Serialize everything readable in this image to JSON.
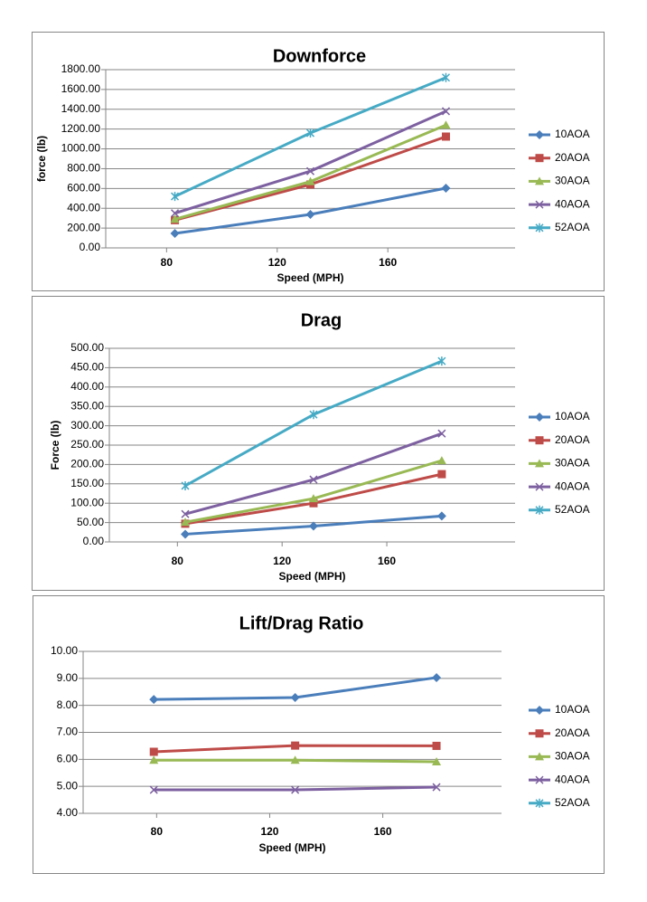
{
  "chart_data": [
    {
      "type": "line",
      "title": "Downforce",
      "x_label": "Speed (MPH)",
      "y_label": "force (lb)",
      "x": [
        83,
        132,
        181
      ],
      "xlim": [
        58,
        206
      ],
      "xticks": [
        80,
        120,
        160
      ],
      "ylim": [
        0,
        1800
      ],
      "yticks": [
        {
          "value": 0,
          "label": "0.00"
        },
        {
          "value": 200,
          "label": "200.00"
        },
        {
          "value": 400,
          "label": "400.00"
        },
        {
          "value": 600,
          "label": "600.00"
        },
        {
          "value": 800,
          "label": "800.00"
        },
        {
          "value": 1000,
          "label": "1000.00"
        },
        {
          "value": 1200,
          "label": "1200.00"
        },
        {
          "value": 1400,
          "label": "1400.00"
        },
        {
          "value": 1600,
          "label": "1600.00"
        },
        {
          "value": 1800,
          "label": "1800.00"
        }
      ],
      "grid": true,
      "legend": "right",
      "series": [
        {
          "name": "10AOA",
          "color": "#4a7ebb",
          "marker": "diamond",
          "values": [
            146,
            338,
            603
          ]
        },
        {
          "name": "20AOA",
          "color": "#be4b48",
          "marker": "square",
          "values": [
            280,
            640,
            1124
          ]
        },
        {
          "name": "30AOA",
          "color": "#98b954",
          "marker": "triangle",
          "values": [
            290,
            670,
            1240
          ]
        },
        {
          "name": "40AOA",
          "color": "#7d60a0",
          "marker": "x",
          "values": [
            350,
            775,
            1380
          ]
        },
        {
          "name": "52AOA",
          "color": "#46aac5",
          "marker": "star",
          "values": [
            520,
            1160,
            1720
          ]
        }
      ]
    },
    {
      "type": "line",
      "title": "Drag",
      "x_label": "Speed (MPH)",
      "y_label": "Force (lb)",
      "x": [
        83,
        132,
        181
      ],
      "xlim": [
        54,
        209
      ],
      "xticks": [
        80,
        120,
        160
      ],
      "ylim": [
        0,
        500
      ],
      "yticks": [
        {
          "value": 0,
          "label": "0.00"
        },
        {
          "value": 50,
          "label": "50.00"
        },
        {
          "value": 100,
          "label": "100.00"
        },
        {
          "value": 150,
          "label": "150.00"
        },
        {
          "value": 200,
          "label": "200.00"
        },
        {
          "value": 250,
          "label": "250.00"
        },
        {
          "value": 300,
          "label": "300.00"
        },
        {
          "value": 350,
          "label": "350.00"
        },
        {
          "value": 400,
          "label": "400.00"
        },
        {
          "value": 450,
          "label": "450.00"
        },
        {
          "value": 500,
          "label": "500.00"
        }
      ],
      "grid": true,
      "legend": "right",
      "series": [
        {
          "name": "10AOA",
          "color": "#4a7ebb",
          "marker": "diamond",
          "values": [
            20,
            41,
            67
          ]
        },
        {
          "name": "20AOA",
          "color": "#be4b48",
          "marker": "square",
          "values": [
            47,
            100,
            175
          ]
        },
        {
          "name": "30AOA",
          "color": "#98b954",
          "marker": "triangle",
          "values": [
            51,
            112,
            210
          ]
        },
        {
          "name": "40AOA",
          "color": "#7d60a0",
          "marker": "x",
          "values": [
            72,
            161,
            280
          ]
        },
        {
          "name": "52AOA",
          "color": "#46aac5",
          "marker": "star",
          "values": [
            145,
            329,
            467
          ]
        }
      ]
    },
    {
      "type": "line",
      "title": "Lift/Drag Ratio",
      "x_label": "Speed (MPH)",
      "x": [
        79,
        129,
        179
      ],
      "xlim": [
        54,
        202
      ],
      "xticks": [
        80,
        120,
        160
      ],
      "ylim": [
        4,
        10
      ],
      "yticks": [
        {
          "value": 4,
          "label": "4.00"
        },
        {
          "value": 5,
          "label": "5.00"
        },
        {
          "value": 6,
          "label": "6.00"
        },
        {
          "value": 7,
          "label": "7.00"
        },
        {
          "value": 8,
          "label": "8.00"
        },
        {
          "value": 9,
          "label": "9.00"
        },
        {
          "value": 10,
          "label": "10.00"
        }
      ],
      "grid": true,
      "legend": "right",
      "series": [
        {
          "name": "10AOA",
          "color": "#4a7ebb",
          "marker": "diamond",
          "values": [
            8.22,
            8.29,
            9.03
          ]
        },
        {
          "name": "20AOA",
          "color": "#be4b48",
          "marker": "square",
          "values": [
            6.28,
            6.51,
            6.5
          ]
        },
        {
          "name": "30AOA",
          "color": "#98b954",
          "marker": "triangle",
          "values": [
            5.97,
            5.97,
            5.91
          ]
        },
        {
          "name": "40AOA",
          "color": "#7d60a0",
          "marker": "x",
          "values": [
            4.87,
            4.87,
            4.97
          ]
        },
        {
          "name": "52AOA",
          "color": "#46aac5",
          "marker": "star",
          "values": [
            null,
            null,
            null
          ]
        }
      ]
    }
  ]
}
